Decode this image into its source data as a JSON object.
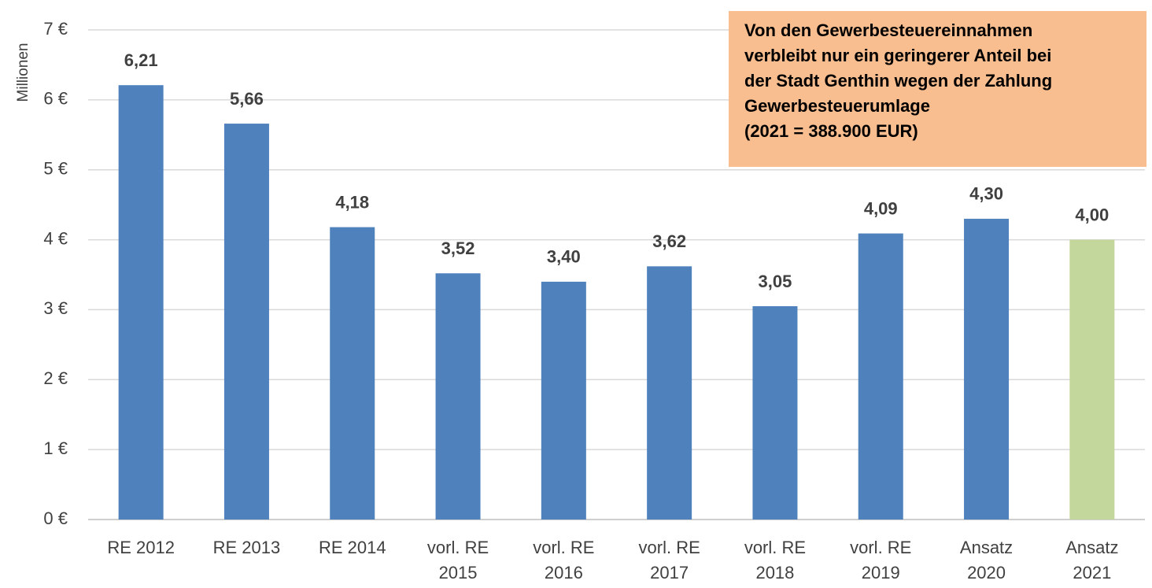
{
  "chart_data": {
    "type": "bar",
    "y_axis_label": "Millionen",
    "categories": [
      "RE 2012",
      "RE 2013",
      "RE 2014",
      "vorl. RE 2015",
      "vorl. RE 2016",
      "vorl. RE 2017",
      "vorl. RE 2018",
      "vorl. RE 2019",
      "Ansatz 2020",
      "Ansatz 2021"
    ],
    "values": [
      6.21,
      5.66,
      4.18,
      3.52,
      3.4,
      3.62,
      3.05,
      4.09,
      4.3,
      4.0
    ],
    "value_labels": [
      "6,21",
      "5,66",
      "4,18",
      "3,52",
      "3,40",
      "3,62",
      "3,05",
      "4,09",
      "4,30",
      "4,00"
    ],
    "colors": [
      "#4f81bd",
      "#4f81bd",
      "#4f81bd",
      "#4f81bd",
      "#4f81bd",
      "#4f81bd",
      "#4f81bd",
      "#4f81bd",
      "#4f81bd",
      "#c3d69b"
    ],
    "ylim": [
      0,
      7
    ],
    "yticks": [
      {
        "value": 0,
        "label": "0 €"
      },
      {
        "value": 1,
        "label": "1 €"
      },
      {
        "value": 2,
        "label": "2 €"
      },
      {
        "value": 3,
        "label": "3 €"
      },
      {
        "value": 4,
        "label": "4 €"
      },
      {
        "value": 5,
        "label": "5 €"
      },
      {
        "value": 6,
        "label": "6 €"
      },
      {
        "value": 7,
        "label": "7 €"
      }
    ],
    "grid": true,
    "annotation": [
      "Von den Gewerbesteuereinnahmen",
      "verbleibt nur ein geringerer Anteil bei",
      "der Stadt Genthin wegen der Zahlung",
      "Gewerbesteuerumlage",
      "(2021 = 388.900 EUR)"
    ],
    "annotation_color": "#f9be8f"
  }
}
